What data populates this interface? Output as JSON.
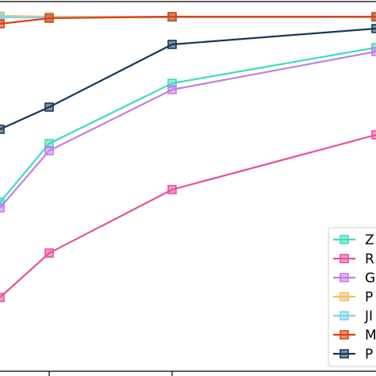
{
  "chart_data": {
    "type": "line",
    "x": [
      0,
      62,
      217,
      474
    ],
    "xlim": [
      0,
      474
    ],
    "ylim": [
      0,
      466
    ],
    "xticks": [
      62,
      217
    ],
    "legend": "lower right",
    "series": [
      {
        "name": "Z",
        "color": "#3fdcbc",
        "values": [
          213,
          287,
          363,
          408
        ]
      },
      {
        "name": "R",
        "color": "#e8509f",
        "values": [
          93,
          149,
          229,
          298
        ]
      },
      {
        "name": "G",
        "color": "#c27ee8",
        "values": [
          206,
          278,
          355,
          403
        ]
      },
      {
        "name": "P",
        "color": "#f4c064",
        "values": [
          448,
          447,
          447,
          447
        ]
      },
      {
        "name": "JI",
        "color": "#7fd4f0",
        "values": [
          446,
          446,
          446,
          446
        ]
      },
      {
        "name": "M",
        "color": "#e0420e",
        "values": [
          438,
          445,
          447,
          447
        ]
      },
      {
        "name": "P",
        "color": "#163a5a",
        "values": [
          305,
          333,
          412,
          432
        ]
      }
    ]
  }
}
